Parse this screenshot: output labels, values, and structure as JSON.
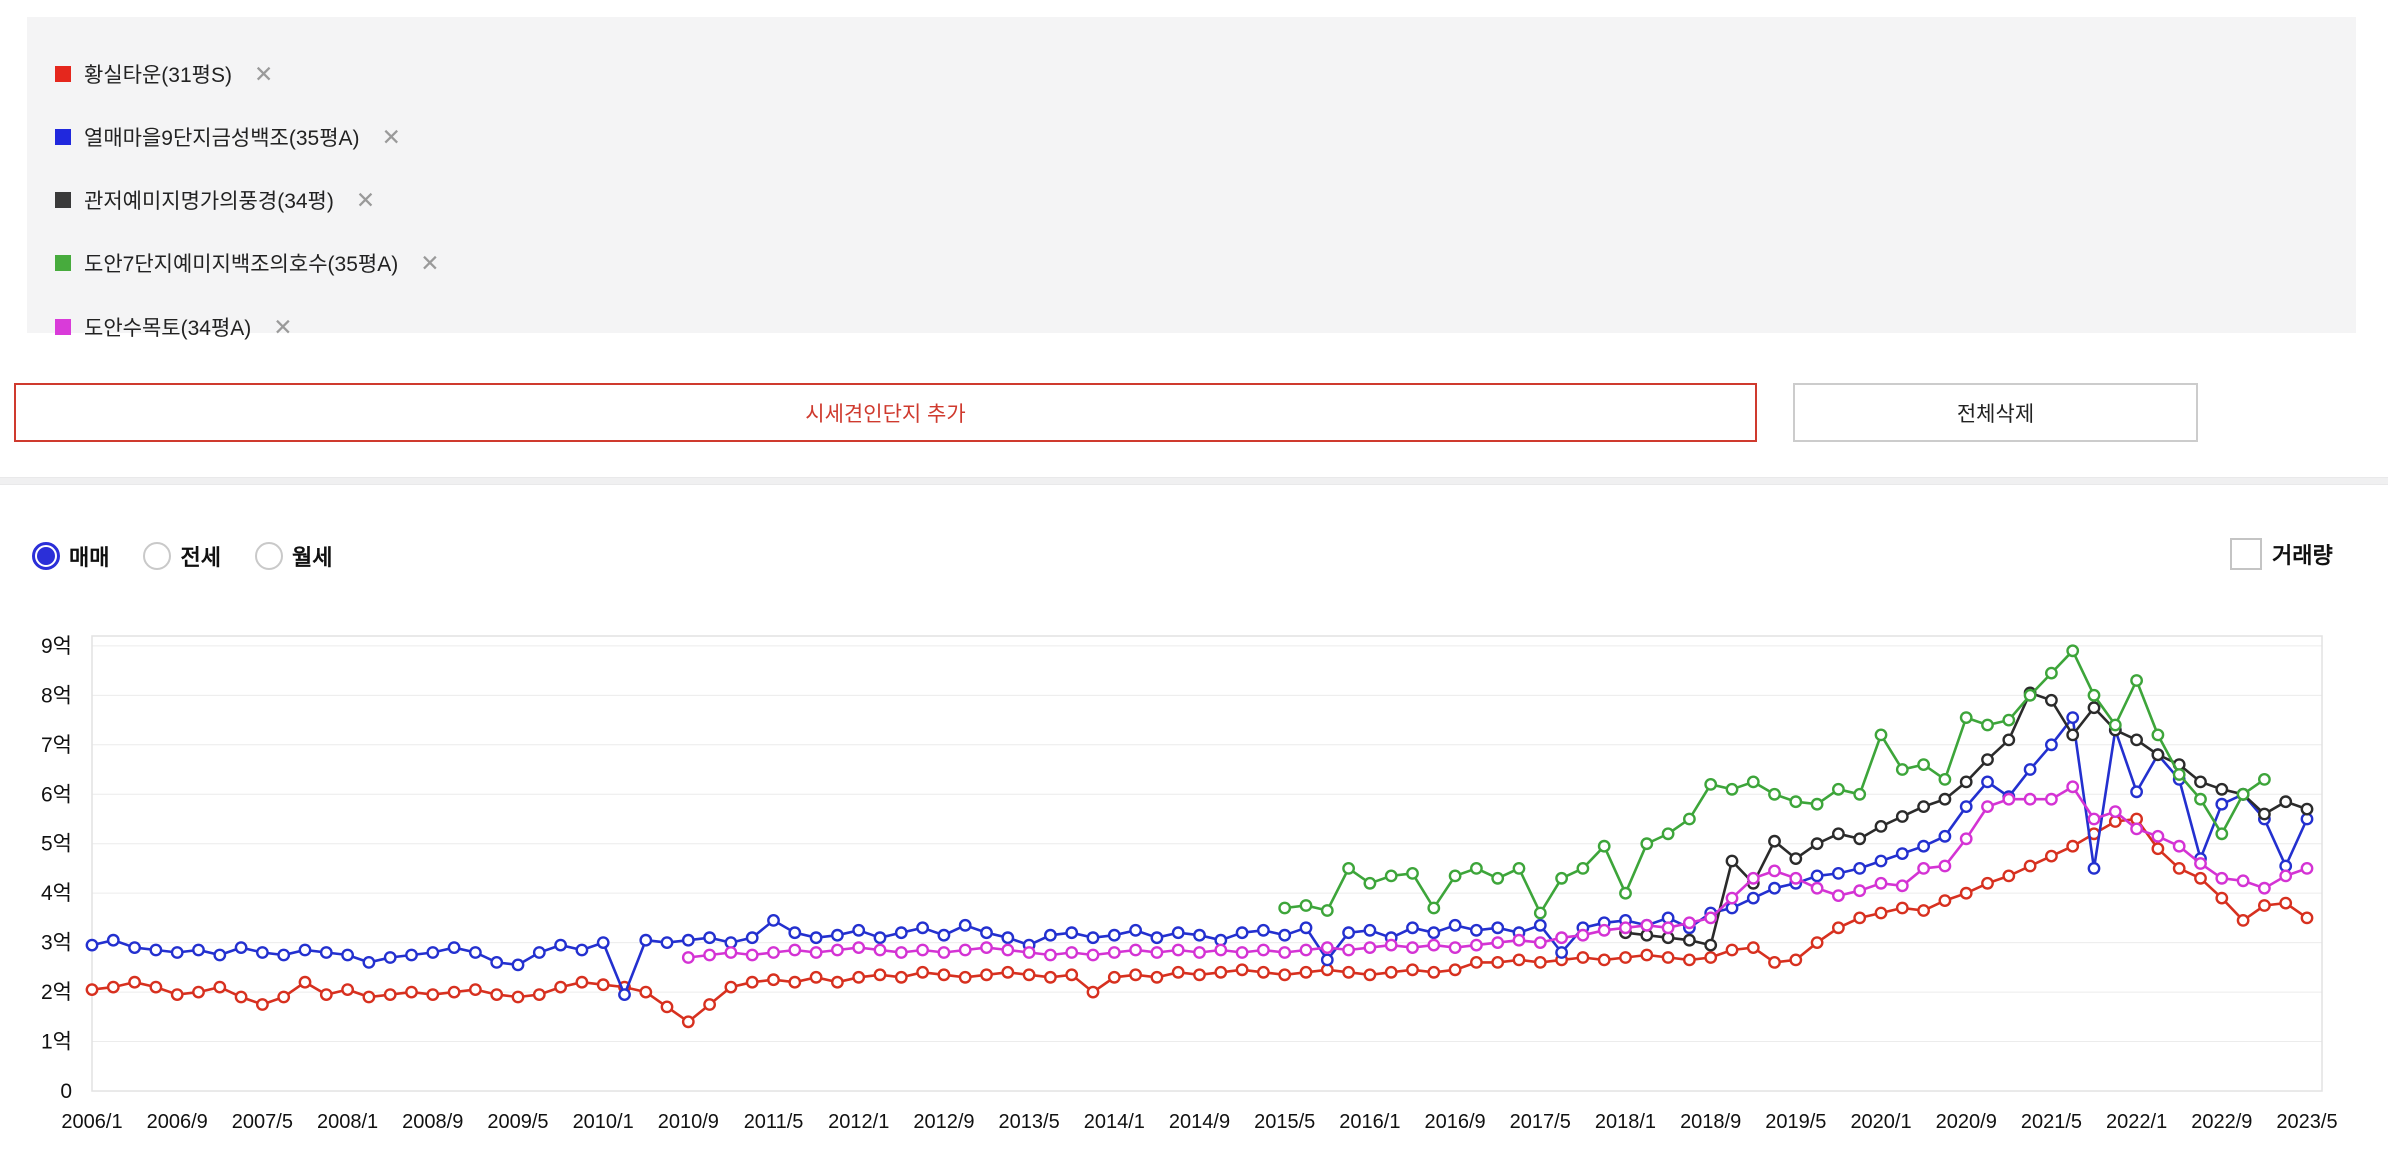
{
  "legend": {
    "items": [
      {
        "label": "황실타운(31평S)",
        "color": "#e5271d"
      },
      {
        "label": "열매마을9단지금성백조(35평A)",
        "color": "#2028dd"
      },
      {
        "label": "관저예미지명가의풍경(34평)",
        "color": "#3a3a3a"
      },
      {
        "label": "도안7단지예미지백조의호수(35평A)",
        "color": "#47ab3d"
      },
      {
        "label": "도안수목토(34평A)",
        "color": "#d93bd9"
      }
    ],
    "remove_icon": "✕"
  },
  "buttons": {
    "add_complex": "시세견인단지 추가",
    "delete_all": "전체삭제"
  },
  "controls": {
    "trade_types": [
      {
        "label": "매매",
        "selected": true
      },
      {
        "label": "전세",
        "selected": false
      },
      {
        "label": "월세",
        "selected": false
      }
    ],
    "volume_checkbox": {
      "label": "거래량",
      "checked": false
    }
  },
  "colors": {
    "accent_red": "#cf3a2e",
    "radio_selected": "#2b2fd8",
    "panel_bg": "#f4f4f5",
    "grid_line": "#ececec",
    "plot_border": "#e2e2e2"
  },
  "chart_data": {
    "type": "line",
    "unit": "억",
    "ylim": [
      0,
      9.2
    ],
    "grid": true,
    "legend_position": "top-panel",
    "y_ticks": [
      "9억",
      "8억",
      "7억",
      "6억",
      "5억",
      "4억",
      "3억",
      "2억",
      "1억",
      "0"
    ],
    "x_labels": [
      "2006/1",
      "2006/9",
      "2007/5",
      "2008/1",
      "2008/9",
      "2009/5",
      "2010/1",
      "2010/9",
      "2011/5",
      "2012/1",
      "2012/9",
      "2013/5",
      "2014/1",
      "2014/9",
      "2015/5",
      "2016/1",
      "2016/9",
      "2017/5",
      "2018/1",
      "2018/9",
      "2019/5",
      "2020/1",
      "2020/9",
      "2021/5",
      "2022/1",
      "2022/9",
      "2023/5"
    ],
    "points_per_label_gap": 4,
    "series": [
      {
        "name": "황실타운(31평S)",
        "color": "#d7301f",
        "values": [
          2.05,
          2.1,
          2.2,
          2.1,
          1.95,
          2.0,
          2.1,
          1.9,
          1.75,
          1.9,
          2.2,
          1.95,
          2.05,
          1.9,
          1.95,
          2.0,
          1.95,
          2.0,
          2.05,
          1.95,
          1.9,
          1.95,
          2.1,
          2.2,
          2.15,
          2.1,
          2.0,
          1.7,
          1.4,
          1.75,
          2.1,
          2.2,
          2.25,
          2.2,
          2.3,
          2.2,
          2.3,
          2.35,
          2.3,
          2.4,
          2.35,
          2.3,
          2.35,
          2.4,
          2.35,
          2.3,
          2.35,
          2.0,
          2.3,
          2.35,
          2.3,
          2.4,
          2.35,
          2.4,
          2.45,
          2.4,
          2.35,
          2.4,
          2.45,
          2.4,
          2.35,
          2.4,
          2.45,
          2.4,
          2.45,
          2.6,
          2.6,
          2.65,
          2.6,
          2.65,
          2.7,
          2.65,
          2.7,
          2.75,
          2.7,
          2.65,
          2.7,
          2.85,
          2.9,
          2.6,
          2.65,
          3.0,
          3.3,
          3.5,
          3.6,
          3.7,
          3.65,
          3.85,
          4.0,
          4.2,
          4.35,
          4.55,
          4.75,
          4.95,
          5.2,
          5.45,
          5.5,
          4.9,
          4.5,
          4.3,
          3.9,
          3.45,
          3.75,
          3.8,
          3.5
        ]
      },
      {
        "name": "열매마을9단지금성백조(35평A)",
        "color": "#2330cf",
        "values": [
          2.95,
          3.05,
          2.9,
          2.85,
          2.8,
          2.85,
          2.75,
          2.9,
          2.8,
          2.75,
          2.85,
          2.8,
          2.75,
          2.6,
          2.7,
          2.75,
          2.8,
          2.9,
          2.8,
          2.6,
          2.55,
          2.8,
          2.95,
          2.85,
          3.0,
          1.95,
          3.05,
          3.0,
          3.05,
          3.1,
          3.0,
          3.1,
          3.45,
          3.2,
          3.1,
          3.15,
          3.25,
          3.1,
          3.2,
          3.3,
          3.15,
          3.35,
          3.2,
          3.1,
          2.95,
          3.15,
          3.2,
          3.1,
          3.15,
          3.25,
          3.1,
          3.2,
          3.15,
          3.05,
          3.2,
          3.25,
          3.15,
          3.3,
          2.65,
          3.2,
          3.25,
          3.1,
          3.3,
          3.2,
          3.35,
          3.25,
          3.3,
          3.2,
          3.35,
          2.8,
          3.3,
          3.4,
          3.45,
          3.35,
          3.5,
          3.3,
          3.6,
          3.7,
          3.9,
          4.1,
          4.2,
          4.35,
          4.4,
          4.5,
          4.65,
          4.8,
          4.95,
          5.15,
          5.75,
          6.25,
          5.95,
          6.5,
          7.0,
          7.55,
          4.5,
          7.3,
          6.05,
          6.8,
          6.3,
          4.7,
          5.8,
          6.0,
          5.5,
          4.55,
          5.5
        ]
      },
      {
        "name": "관저예미지명가의풍경(34평)",
        "color": "#2b2b2b",
        "values": [
          null,
          null,
          null,
          null,
          null,
          null,
          null,
          null,
          null,
          null,
          null,
          null,
          null,
          null,
          null,
          null,
          null,
          null,
          null,
          null,
          null,
          null,
          null,
          null,
          null,
          null,
          null,
          null,
          null,
          null,
          null,
          null,
          null,
          null,
          null,
          null,
          null,
          null,
          null,
          null,
          null,
          null,
          null,
          null,
          null,
          null,
          null,
          null,
          null,
          null,
          null,
          null,
          null,
          null,
          null,
          null,
          null,
          null,
          null,
          null,
          null,
          null,
          null,
          null,
          null,
          null,
          null,
          null,
          null,
          null,
          null,
          null,
          3.2,
          3.15,
          3.1,
          3.05,
          2.95,
          4.65,
          4.2,
          5.05,
          4.7,
          5.0,
          5.2,
          5.1,
          5.35,
          5.55,
          5.75,
          5.9,
          6.25,
          6.7,
          7.1,
          8.05,
          7.9,
          7.2,
          7.75,
          7.3,
          7.1,
          6.8,
          6.6,
          6.25,
          6.1,
          6.0,
          5.6,
          5.85,
          5.7
        ]
      },
      {
        "name": "도안7단지예미지백조의호수(35평A)",
        "color": "#3da53a",
        "values": [
          null,
          null,
          null,
          null,
          null,
          null,
          null,
          null,
          null,
          null,
          null,
          null,
          null,
          null,
          null,
          null,
          null,
          null,
          null,
          null,
          null,
          null,
          null,
          null,
          null,
          null,
          null,
          null,
          null,
          null,
          null,
          null,
          null,
          null,
          null,
          null,
          null,
          null,
          null,
          null,
          null,
          null,
          null,
          null,
          null,
          null,
          null,
          null,
          null,
          null,
          null,
          null,
          null,
          null,
          null,
          null,
          3.7,
          3.75,
          3.65,
          4.5,
          4.2,
          4.35,
          4.4,
          3.7,
          4.35,
          4.5,
          4.3,
          4.5,
          3.6,
          4.3,
          4.5,
          4.95,
          4.0,
          5.0,
          5.2,
          5.5,
          6.2,
          6.1,
          6.25,
          6.0,
          5.85,
          5.8,
          6.1,
          6.0,
          7.2,
          6.5,
          6.6,
          6.3,
          7.55,
          7.4,
          7.5,
          8.0,
          8.45,
          8.9,
          8.0,
          7.4,
          8.3,
          7.2,
          6.4,
          5.9,
          5.2,
          6.0,
          6.3,
          null,
          null
        ]
      },
      {
        "name": "도안수목토(34평A)",
        "color": "#d433d4",
        "values": [
          null,
          null,
          null,
          null,
          null,
          null,
          null,
          null,
          null,
          null,
          null,
          null,
          null,
          null,
          null,
          null,
          null,
          null,
          null,
          null,
          null,
          null,
          null,
          null,
          null,
          null,
          null,
          null,
          2.7,
          2.75,
          2.8,
          2.75,
          2.8,
          2.85,
          2.8,
          2.85,
          2.9,
          2.85,
          2.8,
          2.85,
          2.8,
          2.85,
          2.9,
          2.85,
          2.8,
          2.75,
          2.8,
          2.75,
          2.8,
          2.85,
          2.8,
          2.85,
          2.8,
          2.85,
          2.8,
          2.85,
          2.8,
          2.85,
          2.9,
          2.85,
          2.9,
          2.95,
          2.9,
          2.95,
          2.9,
          2.95,
          3.0,
          3.05,
          3.0,
          3.1,
          3.15,
          3.25,
          3.3,
          3.35,
          3.3,
          3.4,
          3.5,
          3.9,
          4.3,
          4.45,
          4.3,
          4.1,
          3.95,
          4.05,
          4.2,
          4.15,
          4.5,
          4.55,
          5.1,
          5.75,
          5.9,
          5.9,
          5.9,
          6.15,
          5.5,
          5.65,
          5.3,
          5.15,
          4.95,
          4.6,
          4.3,
          4.25,
          4.1,
          4.35,
          4.5
        ]
      }
    ]
  }
}
